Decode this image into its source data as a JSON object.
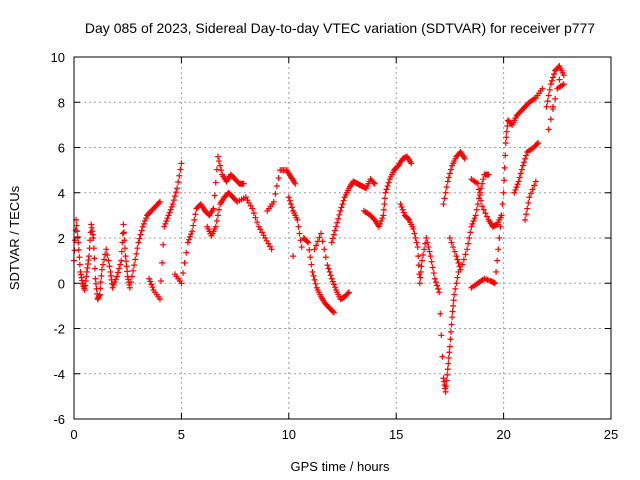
{
  "chart_data": {
    "type": "scatter",
    "title": "Day 085 of 2023, Sidereal Day-to-day VTEC variation (SDTVAR) for receiver p777",
    "xlabel": "GPS time / hours",
    "ylabel": "SDTVAR / TECUs",
    "xlim": [
      0,
      25
    ],
    "ylim": [
      -6,
      10
    ],
    "x_ticks": [
      0,
      5,
      10,
      15,
      20,
      25
    ],
    "y_ticks": [
      -6,
      -4,
      -2,
      0,
      2,
      4,
      6,
      8,
      10
    ],
    "grid": true,
    "marker": "+",
    "color": "#ff0000",
    "series": [
      {
        "name": "SDTVAR",
        "points": [
          [
            0.0,
            1.0
          ],
          [
            0.1,
            2.8
          ],
          [
            0.2,
            1.8
          ],
          [
            0.3,
            0.5
          ],
          [
            0.4,
            0.0
          ],
          [
            0.5,
            -0.3
          ],
          [
            0.6,
            0.5
          ],
          [
            0.7,
            1.2
          ],
          [
            0.8,
            2.6
          ],
          [
            0.9,
            2.0
          ],
          [
            1.0,
            0.2
          ],
          [
            1.1,
            -0.7
          ],
          [
            1.2,
            -0.5
          ],
          [
            1.3,
            0.6
          ],
          [
            1.5,
            1.5
          ],
          [
            1.7,
            0.5
          ],
          [
            1.8,
            -0.2
          ],
          [
            2.0,
            0.3
          ],
          [
            2.2,
            1.0
          ],
          [
            2.3,
            2.6
          ],
          [
            2.4,
            1.2
          ],
          [
            2.5,
            0.3
          ],
          [
            2.6,
            -0.2
          ],
          [
            2.8,
            0.8
          ],
          [
            3.0,
            1.8
          ],
          [
            3.2,
            2.5
          ],
          [
            3.4,
            3.0
          ],
          [
            3.6,
            3.2
          ],
          [
            3.8,
            3.4
          ],
          [
            4.0,
            3.6
          ],
          [
            3.5,
            0.2
          ],
          [
            3.7,
            -0.3
          ],
          [
            4.0,
            -0.7
          ],
          [
            4.2,
            2.5
          ],
          [
            4.4,
            3.0
          ],
          [
            4.6,
            3.5
          ],
          [
            4.8,
            4.2
          ],
          [
            5.0,
            5.3
          ],
          [
            4.7,
            0.4
          ],
          [
            5.0,
            0.0
          ],
          [
            5.3,
            1.8
          ],
          [
            5.5,
            2.3
          ],
          [
            5.7,
            3.3
          ],
          [
            5.9,
            3.5
          ],
          [
            6.1,
            3.2
          ],
          [
            6.3,
            3.0
          ],
          [
            6.5,
            3.3
          ],
          [
            6.7,
            5.6
          ],
          [
            6.9,
            4.8
          ],
          [
            7.1,
            4.5
          ],
          [
            7.3,
            4.8
          ],
          [
            7.5,
            4.6
          ],
          [
            7.7,
            4.4
          ],
          [
            7.9,
            4.4
          ],
          [
            6.2,
            2.5
          ],
          [
            6.4,
            2.1
          ],
          [
            6.6,
            2.5
          ],
          [
            6.8,
            3.5
          ],
          [
            7.0,
            3.8
          ],
          [
            7.2,
            4.0
          ],
          [
            7.4,
            3.8
          ],
          [
            7.6,
            3.6
          ],
          [
            8.0,
            3.8
          ],
          [
            8.3,
            3.3
          ],
          [
            8.6,
            2.5
          ],
          [
            8.9,
            2.0
          ],
          [
            9.2,
            1.5
          ],
          [
            9.0,
            3.2
          ],
          [
            9.3,
            3.6
          ],
          [
            9.6,
            5.0
          ],
          [
            9.9,
            5.0
          ],
          [
            10.1,
            4.7
          ],
          [
            10.3,
            4.4
          ],
          [
            10.0,
            3.8
          ],
          [
            10.2,
            3.2
          ],
          [
            10.4,
            2.8
          ],
          [
            10.6,
            1.6
          ],
          [
            10.2,
            1.2
          ],
          [
            10.7,
            2.0
          ],
          [
            10.9,
            1.8
          ],
          [
            11.1,
            0.5
          ],
          [
            11.3,
            -0.2
          ],
          [
            11.5,
            -0.6
          ],
          [
            11.7,
            -0.9
          ],
          [
            11.9,
            -1.1
          ],
          [
            12.1,
            -1.3
          ],
          [
            11.2,
            1.5
          ],
          [
            11.5,
            2.2
          ],
          [
            11.8,
            0.8
          ],
          [
            12.0,
            0.2
          ],
          [
            12.2,
            -0.3
          ],
          [
            12.4,
            -0.7
          ],
          [
            12.6,
            -0.6
          ],
          [
            12.8,
            -0.4
          ],
          [
            12.0,
            1.8
          ],
          [
            12.2,
            2.5
          ],
          [
            12.4,
            3.2
          ],
          [
            12.6,
            3.8
          ],
          [
            12.8,
            4.2
          ],
          [
            13.0,
            4.5
          ],
          [
            13.2,
            4.4
          ],
          [
            13.4,
            4.3
          ],
          [
            13.6,
            4.2
          ],
          [
            13.8,
            4.6
          ],
          [
            14.0,
            4.4
          ],
          [
            13.5,
            3.2
          ],
          [
            13.8,
            3.0
          ],
          [
            14.0,
            2.8
          ],
          [
            14.2,
            2.5
          ],
          [
            14.4,
            3.0
          ],
          [
            14.5,
            4.0
          ],
          [
            14.7,
            4.6
          ],
          [
            14.9,
            5.0
          ],
          [
            15.1,
            5.2
          ],
          [
            15.3,
            5.5
          ],
          [
            15.5,
            5.6
          ],
          [
            15.7,
            5.3
          ],
          [
            15.2,
            3.5
          ],
          [
            15.4,
            3.0
          ],
          [
            15.6,
            2.8
          ],
          [
            15.8,
            2.4
          ],
          [
            16.0,
            1.6
          ],
          [
            16.1,
            0.0
          ],
          [
            16.2,
            1.0
          ],
          [
            16.4,
            2.0
          ],
          [
            16.6,
            1.2
          ],
          [
            16.8,
            0.2
          ],
          [
            17.0,
            -0.4
          ],
          [
            17.2,
            -4.2
          ],
          [
            17.3,
            -4.8
          ],
          [
            17.4,
            -3.8
          ],
          [
            17.5,
            -2.8
          ],
          [
            17.6,
            -1.5
          ],
          [
            17.7,
            -0.5
          ],
          [
            17.9,
            0.5
          ],
          [
            17.2,
            3.5
          ],
          [
            17.4,
            4.5
          ],
          [
            17.6,
            5.2
          ],
          [
            17.8,
            5.6
          ],
          [
            18.0,
            5.8
          ],
          [
            18.2,
            5.5
          ],
          [
            17.5,
            2.0
          ],
          [
            17.8,
            1.2
          ],
          [
            18.0,
            0.6
          ],
          [
            18.3,
            1.5
          ],
          [
            18.5,
            2.5
          ],
          [
            18.7,
            3.0
          ],
          [
            18.9,
            4.0
          ],
          [
            19.1,
            4.8
          ],
          [
            19.3,
            4.8
          ],
          [
            18.5,
            4.6
          ],
          [
            18.8,
            4.4
          ],
          [
            19.0,
            3.4
          ],
          [
            19.3,
            2.8
          ],
          [
            19.5,
            2.5
          ],
          [
            19.7,
            2.6
          ],
          [
            19.9,
            3.0
          ],
          [
            18.5,
            -0.2
          ],
          [
            18.8,
            0.0
          ],
          [
            19.1,
            0.2
          ],
          [
            19.4,
            0.1
          ],
          [
            19.6,
            0.0
          ],
          [
            19.8,
            2.0
          ],
          [
            20.0,
            4.0
          ],
          [
            20.1,
            6.2
          ],
          [
            20.2,
            7.2
          ],
          [
            20.4,
            7.0
          ],
          [
            20.6,
            7.4
          ],
          [
            20.8,
            7.6
          ],
          [
            21.0,
            7.8
          ],
          [
            21.2,
            8.0
          ],
          [
            21.5,
            8.2
          ],
          [
            21.8,
            8.6
          ],
          [
            20.5,
            4.0
          ],
          [
            20.7,
            4.5
          ],
          [
            20.9,
            5.2
          ],
          [
            21.1,
            5.8
          ],
          [
            21.4,
            6.0
          ],
          [
            21.6,
            6.2
          ],
          [
            21.0,
            2.8
          ],
          [
            21.2,
            3.8
          ],
          [
            21.5,
            4.5
          ],
          [
            22.0,
            7.8
          ],
          [
            22.2,
            8.8
          ],
          [
            22.4,
            9.4
          ],
          [
            22.6,
            9.6
          ],
          [
            22.8,
            9.2
          ],
          [
            22.6,
            9.0
          ],
          [
            22.3,
            7.8
          ],
          [
            22.1,
            6.8
          ],
          [
            22.5,
            8.6
          ],
          [
            22.8,
            8.8
          ]
        ]
      }
    ]
  }
}
